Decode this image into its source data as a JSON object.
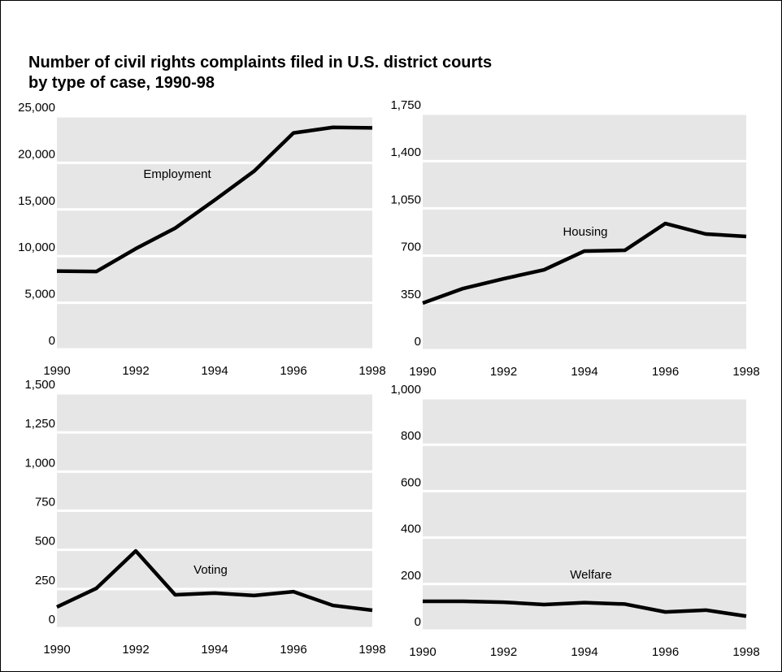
{
  "title": [
    "Number of civil rights complaints filed in U.S. district courts",
    "by type of case, 1990-98"
  ],
  "chart_data": [
    {
      "type": "line",
      "x": [
        1990,
        1991,
        1992,
        1993,
        1994,
        1995,
        1996,
        1997,
        1998
      ],
      "series": [
        {
          "name": "Employment",
          "color": "#000000",
          "values": [
            8400,
            8350,
            10800,
            13000,
            16000,
            19100,
            23200,
            23800,
            23750
          ]
        }
      ],
      "xlim": [
        1990,
        1998
      ],
      "xticks": [
        1990,
        1992,
        1994,
        1996,
        1998
      ],
      "ylim": [
        0,
        25000
      ],
      "yticks": [
        0,
        {
          "value": 5000,
          "label": "5,000"
        },
        {
          "value": 10000,
          "label": "10,000"
        },
        {
          "value": 15000,
          "label": "15,000"
        },
        {
          "value": 20000,
          "label": "20,000"
        },
        {
          "value": 25000,
          "label": "25,000"
        }
      ],
      "grid": true
    },
    {
      "type": "line",
      "x": [
        1990,
        1991,
        1992,
        1993,
        1994,
        1995,
        1996,
        1997,
        1998
      ],
      "series": [
        {
          "name": "Housing",
          "color": "#000000",
          "values": [
            349,
            457,
            529,
            595,
            734,
            740,
            938,
            860,
            842
          ]
        }
      ],
      "xlim": [
        1990,
        1998
      ],
      "xticks": [
        1990,
        1992,
        1994,
        1996,
        1998
      ],
      "ylim": [
        0,
        1750
      ],
      "yticks": [
        0,
        350,
        700,
        {
          "value": 1050,
          "label": "1,050"
        },
        {
          "value": 1400,
          "label": "1,400"
        },
        {
          "value": 1750,
          "label": "1,750"
        }
      ],
      "grid": true
    },
    {
      "type": "line",
      "x": [
        1990,
        1991,
        1992,
        1993,
        1994,
        1995,
        1996,
        1997,
        1998
      ],
      "series": [
        {
          "name": "Voting",
          "color": "#000000",
          "values": [
            135,
            254,
            493,
            213,
            224,
            208,
            233,
            145,
            114
          ]
        }
      ],
      "xlim": [
        1990,
        1998
      ],
      "xticks": [
        1990,
        1992,
        1994,
        1996,
        1998
      ],
      "ylim": [
        0,
        1500
      ],
      "yticks": [
        0,
        250,
        500,
        750,
        {
          "value": 1000,
          "label": "1,000"
        },
        {
          "value": 1250,
          "label": "1,250"
        },
        {
          "value": 1500,
          "label": "1,500"
        }
      ],
      "grid": true
    },
    {
      "type": "line",
      "x": [
        1990,
        1991,
        1992,
        1993,
        1994,
        1995,
        1996,
        1997,
        1998
      ],
      "series": [
        {
          "name": "Welfare",
          "color": "#000000",
          "values": [
            126,
            126,
            122,
            112,
            120,
            114,
            80,
            88,
            62
          ]
        }
      ],
      "xlim": [
        1990,
        1998
      ],
      "xticks": [
        1990,
        1992,
        1994,
        1996,
        1998
      ],
      "ylim": [
        0,
        1000
      ],
      "yticks": [
        0,
        200,
        400,
        600,
        800,
        {
          "value": 1000,
          "label": "1,000"
        }
      ],
      "grid": true
    }
  ]
}
